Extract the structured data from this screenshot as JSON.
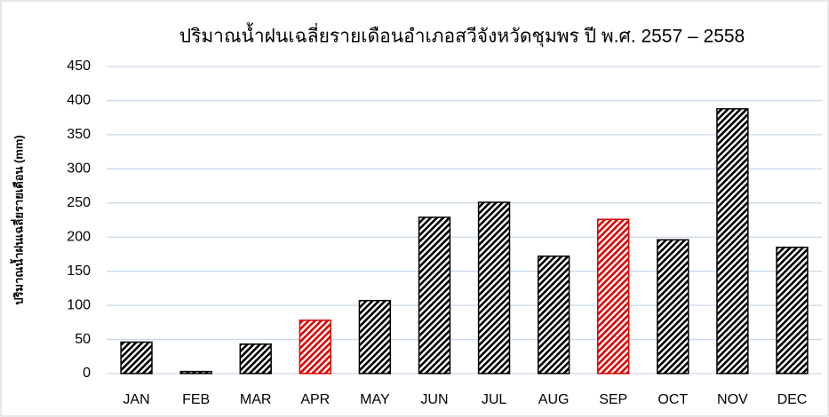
{
  "chart_data": {
    "type": "bar",
    "title": "ปริมาณน้ำฝนเฉลี่ยรายเดือนอำเภอสวีจังหวัดชุมพร ปี พ.ศ. 2557 – 2558",
    "y_label": "ปริมาณน้ำฝนเฉลี่ยรายเดือน (mm)",
    "categories": [
      "JAN",
      "FEB",
      "MAR",
      "APR",
      "MAY",
      "JUN",
      "JUL",
      "AUG",
      "SEP",
      "OCT",
      "NOV",
      "DEC"
    ],
    "values": [
      46,
      3,
      43,
      78,
      107,
      229,
      251,
      172,
      226,
      196,
      388,
      185
    ],
    "colors": [
      "#000000",
      "#000000",
      "#000000",
      "#e00000",
      "#000000",
      "#000000",
      "#000000",
      "#000000",
      "#e00000",
      "#000000",
      "#000000",
      "#000000"
    ],
    "ylim": [
      0,
      450
    ],
    "yticks": [
      0,
      50,
      100,
      150,
      200,
      250,
      300,
      350,
      400,
      450
    ],
    "grid": true
  }
}
